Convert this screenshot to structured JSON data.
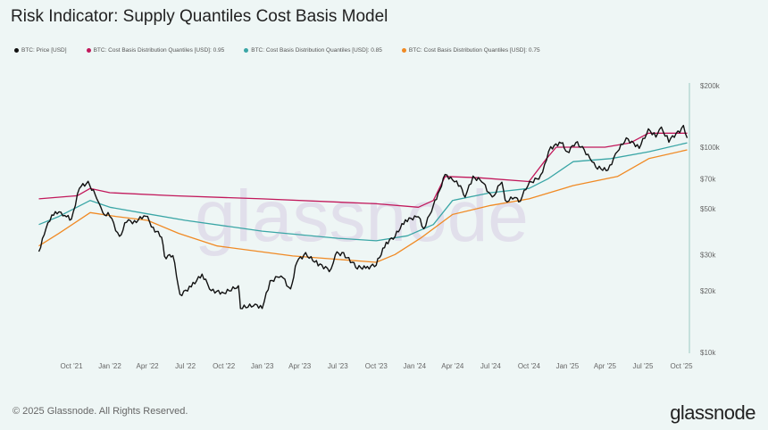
{
  "title": "Risk Indicator: Supply Quantiles Cost Basis Model",
  "footer": "© 2025 Glassnode. All Rights Reserved.",
  "logo": "glassnode",
  "watermark": "glassnode",
  "chart_data": {
    "type": "line",
    "title": "Risk Indicator: Supply Quantiles Cost Basis Model",
    "y_scale": "log",
    "ylim": [
      10000,
      200000
    ],
    "grid": false,
    "legend_position": "top-left",
    "y_ticks": [
      {
        "label": "$200k",
        "value": 200000
      },
      {
        "label": "$100k",
        "value": 100000
      },
      {
        "label": "$70k",
        "value": 70000
      },
      {
        "label": "$50k",
        "value": 50000
      },
      {
        "label": "$30k",
        "value": 30000
      },
      {
        "label": "$20k",
        "value": 20000
      },
      {
        "label": "$10k",
        "value": 10000
      }
    ],
    "x_ticks": [
      {
        "label": "Oct '21",
        "date": "2021-10-01"
      },
      {
        "label": "Jan '22",
        "date": "2022-01-01"
      },
      {
        "label": "Apr '22",
        "date": "2022-04-01"
      },
      {
        "label": "Jul '22",
        "date": "2022-07-01"
      },
      {
        "label": "Oct '22",
        "date": "2022-10-01"
      },
      {
        "label": "Jan '23",
        "date": "2023-01-01"
      },
      {
        "label": "Apr '23",
        "date": "2023-04-01"
      },
      {
        "label": "Jul '23",
        "date": "2023-07-01"
      },
      {
        "label": "Oct '23",
        "date": "2023-10-01"
      },
      {
        "label": "Jan '24",
        "date": "2024-01-01"
      },
      {
        "label": "Apr '24",
        "date": "2024-04-01"
      },
      {
        "label": "Jul '24",
        "date": "2024-07-01"
      },
      {
        "label": "Oct '24",
        "date": "2024-10-01"
      },
      {
        "label": "Jan '25",
        "date": "2025-01-01"
      },
      {
        "label": "Apr '25",
        "date": "2025-04-01"
      },
      {
        "label": "Jul '25",
        "date": "2025-07-01"
      },
      {
        "label": "Oct '25",
        "date": "2025-10-01"
      }
    ],
    "series": [
      {
        "name": "BTC: Price [USD]",
        "color": "#111111",
        "points": [
          [
            "2021-07-15",
            31000
          ],
          [
            "2021-08-01",
            40000
          ],
          [
            "2021-08-15",
            47000
          ],
          [
            "2021-09-01",
            48000
          ],
          [
            "2021-09-15",
            47000
          ],
          [
            "2021-10-01",
            44000
          ],
          [
            "2021-10-20",
            64000
          ],
          [
            "2021-11-10",
            67000
          ],
          [
            "2021-12-01",
            57000
          ],
          [
            "2021-12-15",
            47000
          ],
          [
            "2022-01-01",
            47000
          ],
          [
            "2022-01-24",
            36000
          ],
          [
            "2022-02-10",
            44000
          ],
          [
            "2022-03-01",
            43000
          ],
          [
            "2022-03-28",
            47000
          ],
          [
            "2022-04-15",
            40000
          ],
          [
            "2022-05-05",
            37000
          ],
          [
            "2022-05-12",
            29000
          ],
          [
            "2022-06-01",
            30000
          ],
          [
            "2022-06-18",
            19000
          ],
          [
            "2022-07-15",
            21000
          ],
          [
            "2022-08-10",
            24000
          ],
          [
            "2022-09-01",
            20000
          ],
          [
            "2022-10-01",
            19500
          ],
          [
            "2022-11-05",
            21000
          ],
          [
            "2022-11-10",
            16500
          ],
          [
            "2022-12-15",
            17000
          ],
          [
            "2023-01-01",
            16600
          ],
          [
            "2023-01-20",
            22000
          ],
          [
            "2023-02-15",
            24000
          ],
          [
            "2023-03-10",
            20000
          ],
          [
            "2023-03-25",
            28000
          ],
          [
            "2023-04-15",
            30000
          ],
          [
            "2023-05-15",
            27000
          ],
          [
            "2023-06-15",
            25000
          ],
          [
            "2023-06-25",
            30500
          ],
          [
            "2023-07-15",
            30000
          ],
          [
            "2023-08-17",
            26000
          ],
          [
            "2023-09-10",
            25800
          ],
          [
            "2023-10-01",
            27000
          ],
          [
            "2023-10-25",
            34000
          ],
          [
            "2023-11-15",
            37000
          ],
          [
            "2023-12-10",
            44000
          ],
          [
            "2024-01-10",
            46000
          ],
          [
            "2024-01-23",
            40000
          ],
          [
            "2024-02-15",
            52000
          ],
          [
            "2024-03-01",
            62000
          ],
          [
            "2024-03-14",
            73000
          ],
          [
            "2024-04-01",
            70000
          ],
          [
            "2024-04-20",
            64000
          ],
          [
            "2024-05-01",
            58000
          ],
          [
            "2024-05-20",
            71000
          ],
          [
            "2024-06-10",
            69000
          ],
          [
            "2024-07-05",
            56000
          ],
          [
            "2024-07-28",
            69000
          ],
          [
            "2024-08-05",
            54000
          ],
          [
            "2024-09-01",
            58000
          ],
          [
            "2024-09-06",
            53000
          ],
          [
            "2024-09-28",
            66000
          ],
          [
            "2024-10-29",
            72000
          ],
          [
            "2024-11-12",
            88000
          ],
          [
            "2024-11-22",
            99000
          ],
          [
            "2024-12-17",
            106000
          ],
          [
            "2025-01-01",
            94000
          ],
          [
            "2025-01-21",
            106000
          ],
          [
            "2025-02-10",
            97000
          ],
          [
            "2025-03-01",
            85000
          ],
          [
            "2025-03-10",
            80000
          ],
          [
            "2025-04-08",
            77000
          ],
          [
            "2025-05-01",
            96000
          ],
          [
            "2025-05-22",
            110000
          ],
          [
            "2025-06-22",
            100000
          ],
          [
            "2025-07-14",
            121000
          ],
          [
            "2025-08-01",
            114000
          ],
          [
            "2025-08-14",
            123000
          ],
          [
            "2025-09-01",
            108000
          ],
          [
            "2025-10-06",
            125000
          ],
          [
            "2025-10-15",
            111000
          ]
        ]
      },
      {
        "name": "BTC: Cost Basis Distribution Quantiles [USD]: 0.95",
        "color": "#c2185b",
        "points": [
          [
            "2021-07-15",
            56000
          ],
          [
            "2021-10-15",
            58000
          ],
          [
            "2021-11-15",
            63000
          ],
          [
            "2022-01-01",
            60000
          ],
          [
            "2022-06-01",
            58000
          ],
          [
            "2023-01-01",
            56000
          ],
          [
            "2023-10-01",
            53000
          ],
          [
            "2024-01-10",
            51000
          ],
          [
            "2024-02-15",
            55000
          ],
          [
            "2024-03-14",
            72000
          ],
          [
            "2024-06-01",
            71000
          ],
          [
            "2024-10-01",
            68000
          ],
          [
            "2024-11-12",
            88000
          ],
          [
            "2024-12-05",
            100000
          ],
          [
            "2025-04-01",
            100000
          ],
          [
            "2025-06-01",
            105000
          ],
          [
            "2025-07-14",
            117000
          ],
          [
            "2025-10-15",
            117000
          ]
        ]
      },
      {
        "name": "BTC: Cost Basis Distribution Quantiles [USD]: 0.85",
        "color": "#3aa6a6",
        "points": [
          [
            "2021-07-15",
            42000
          ],
          [
            "2021-09-01",
            46000
          ],
          [
            "2021-11-15",
            55000
          ],
          [
            "2022-01-01",
            51000
          ],
          [
            "2022-03-15",
            48000
          ],
          [
            "2022-07-01",
            44000
          ],
          [
            "2023-01-01",
            39000
          ],
          [
            "2023-07-01",
            36000
          ],
          [
            "2023-10-01",
            35000
          ],
          [
            "2023-12-15",
            37000
          ],
          [
            "2024-02-15",
            42000
          ],
          [
            "2024-04-01",
            55000
          ],
          [
            "2024-07-01",
            60000
          ],
          [
            "2024-10-01",
            63000
          ],
          [
            "2024-11-15",
            70000
          ],
          [
            "2025-01-15",
            85000
          ],
          [
            "2025-04-15",
            88000
          ],
          [
            "2025-07-15",
            95000
          ],
          [
            "2025-10-15",
            105000
          ]
        ]
      },
      {
        "name": "BTC: Cost Basis Distribution Quantiles [USD]: 0.75",
        "color": "#f08a24",
        "points": [
          [
            "2021-07-15",
            33000
          ],
          [
            "2021-09-01",
            38000
          ],
          [
            "2021-11-15",
            48000
          ],
          [
            "2022-01-15",
            46000
          ],
          [
            "2022-04-01",
            44000
          ],
          [
            "2022-06-15",
            38000
          ],
          [
            "2022-09-15",
            33000
          ],
          [
            "2023-03-15",
            29500
          ],
          [
            "2023-10-01",
            27500
          ],
          [
            "2023-11-15",
            30000
          ],
          [
            "2024-01-15",
            36000
          ],
          [
            "2024-04-01",
            47000
          ],
          [
            "2024-07-01",
            52000
          ],
          [
            "2024-10-01",
            56000
          ],
          [
            "2025-01-15",
            65000
          ],
          [
            "2025-05-01",
            72000
          ],
          [
            "2025-07-15",
            88000
          ],
          [
            "2025-10-15",
            97000
          ]
        ]
      }
    ]
  }
}
